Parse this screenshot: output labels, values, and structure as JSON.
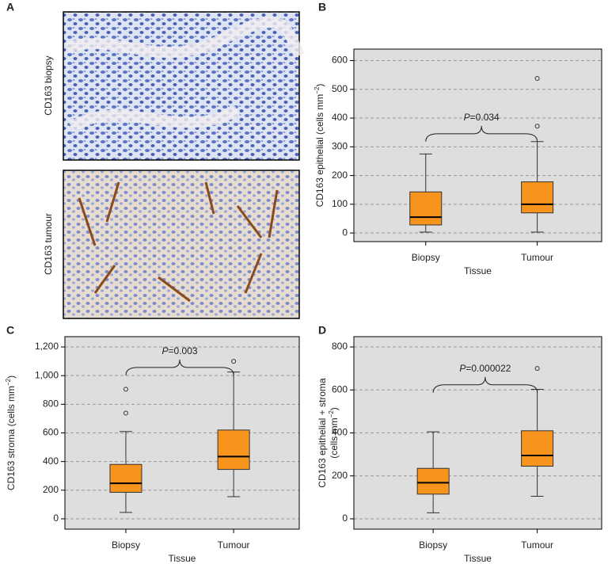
{
  "image_panel": {
    "label": "A",
    "images": [
      {
        "label": "CD163 biopsy"
      },
      {
        "label": "CD163 tumour"
      }
    ]
  },
  "chart_data": [
    {
      "type": "box",
      "panel_label": "B",
      "color": "#f7941d",
      "ylabel": [
        [
          {
            "text": "CD163 epithelial (cells mm"
          },
          {
            "text": "−2",
            "sup": true
          },
          {
            "text": ")"
          }
        ]
      ],
      "xlabel": "Tissue",
      "categories": [
        "Biopsy",
        "Tumour"
      ],
      "boxes": [
        {
          "whislo": 3,
          "q1": 28,
          "med": 55,
          "q3": 143,
          "whishi": 275,
          "fliers": []
        },
        {
          "whislo": 3,
          "q1": 70,
          "med": 100,
          "q3": 178,
          "whishi": 318,
          "fliers": [
            372,
            538
          ]
        }
      ],
      "annotation": [
        {
          "text": "P",
          "italic": true
        },
        {
          "text": "=0.034"
        }
      ],
      "ylim": [
        -30,
        640
      ],
      "yticks": [
        0,
        100,
        200,
        300,
        400,
        500,
        600
      ],
      "grid": true
    },
    {
      "type": "box",
      "panel_label": "C",
      "color": "#f7941d",
      "ylabel": [
        [
          {
            "text": "CD163 stroma (cells mm"
          },
          {
            "text": "−2",
            "sup": true
          },
          {
            "text": ")"
          }
        ]
      ],
      "xlabel": "Tissue",
      "categories": [
        "Biopsy",
        "Tumour"
      ],
      "boxes": [
        {
          "whislo": 45,
          "q1": 185,
          "med": 248,
          "q3": 380,
          "whishi": 610,
          "fliers": [
            738,
            905
          ]
        },
        {
          "whislo": 155,
          "q1": 345,
          "med": 435,
          "q3": 620,
          "whishi": 1025,
          "fliers": [
            1100
          ]
        }
      ],
      "annotation": [
        {
          "text": "P",
          "italic": true
        },
        {
          "text": "=0.003"
        }
      ],
      "ylim": [
        -72,
        1272
      ],
      "yticks": [
        0,
        200,
        400,
        600,
        800,
        {
          "value": 1000,
          "label": "1,000"
        },
        {
          "value": 1200,
          "label": "1,200"
        }
      ],
      "grid": true
    },
    {
      "type": "box",
      "panel_label": "D",
      "color": "#f7941d",
      "ylabel": [
        [
          {
            "text": "CD163 epithelial + stroma"
          }
        ],
        [
          {
            "text": "(cells mm"
          },
          {
            "text": "−2",
            "sup": true
          },
          {
            "text": ")"
          }
        ]
      ],
      "xlabel": "Tissue",
      "categories": [
        "Biopsy",
        "Tumour"
      ],
      "boxes": [
        {
          "whislo": 28,
          "q1": 115,
          "med": 168,
          "q3": 235,
          "whishi": 405,
          "fliers": []
        },
        {
          "whislo": 105,
          "q1": 245,
          "med": 295,
          "q3": 410,
          "whishi": 603,
          "fliers": [
            700
          ]
        }
      ],
      "annotation": [
        {
          "text": "P",
          "italic": true
        },
        {
          "text": "=0.000022"
        }
      ],
      "ylim": [
        -48,
        848
      ],
      "yticks": [
        0,
        200,
        400,
        600,
        800
      ],
      "grid": true
    }
  ]
}
